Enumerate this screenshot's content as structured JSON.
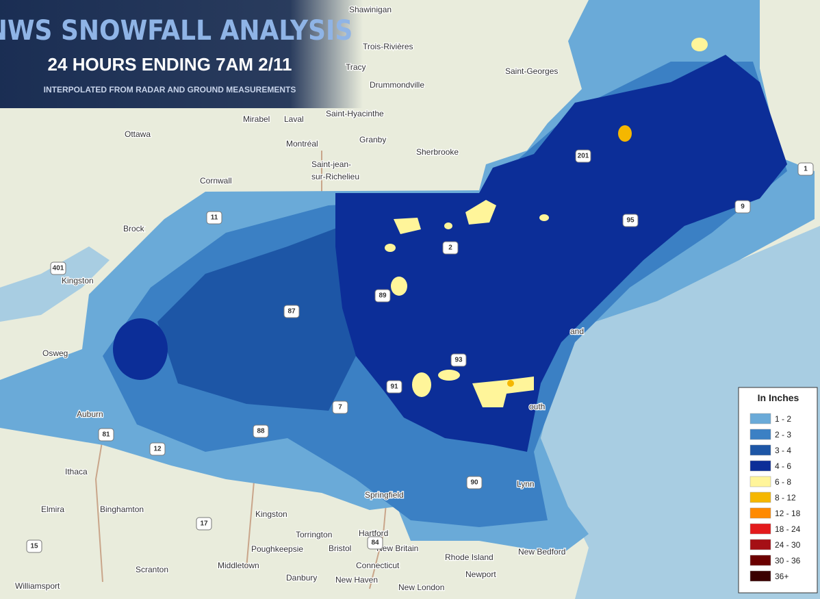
{
  "header": {
    "title": "NWS SNOWFALL ANALYSIS",
    "subtitle": "24 HOURS ENDING 7AM 2/11",
    "note": "INTERPOLATED FROM RADAR AND GROUND MEASUREMENTS"
  },
  "legend": {
    "title": "In Inches",
    "items": [
      {
        "label": "1 - 2",
        "color": "#6aaad8"
      },
      {
        "label": "2 - 3",
        "color": "#3b80c4"
      },
      {
        "label": "3 - 4",
        "color": "#1d56a6"
      },
      {
        "label": "4 - 6",
        "color": "#0c2e98"
      },
      {
        "label": "6 - 8",
        "color": "#fff59a"
      },
      {
        "label": "8 - 12",
        "color": "#f5b700"
      },
      {
        "label": "12 - 18",
        "color": "#ff8a00"
      },
      {
        "label": "18 - 24",
        "color": "#e31a1c"
      },
      {
        "label": "24 - 30",
        "color": "#a50f15"
      },
      {
        "label": "30 - 36",
        "color": "#6b0000"
      },
      {
        "label": "36+",
        "color": "#3a0000"
      }
    ]
  },
  "cities": [
    "Shawinigan",
    "Trois-Rivières",
    "Tracy",
    "Saint-Georges",
    "Drummondville",
    "Saint-Hyacinthe",
    "Mirabel",
    "Laval",
    "Ottawa",
    "Montréal",
    "Granby",
    "Sherbrooke",
    "Saint-jean-",
    "sur-Richelieu",
    "Cornwall",
    "Brock",
    "Kingston",
    "Osweg",
    "Auburn",
    "Ithaca",
    "Elmira",
    "Binghamton",
    "Kingston",
    "Torrington",
    "Hartford",
    "Springfield",
    "Bristol",
    "New Britain",
    "Poughkeepsie",
    "Middletown",
    "Scranton",
    "Williamsport",
    "Danbury",
    "New Haven",
    "New London",
    "Newport",
    "New Bedford",
    "Rhode Island",
    "Connecticut",
    "Lynn",
    "outh",
    "and"
  ],
  "shields": [
    "401",
    "11",
    "87",
    "89",
    "2",
    "91",
    "93",
    "95",
    "7",
    "88",
    "81",
    "12",
    "90",
    "84",
    "17",
    "15",
    "201",
    "1",
    "9"
  ]
}
